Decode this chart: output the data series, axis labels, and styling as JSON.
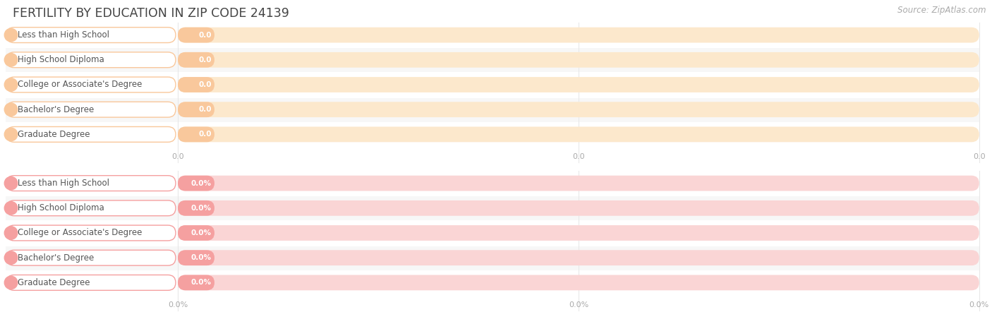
{
  "title": "FERTILITY BY EDUCATION IN ZIP CODE 24139",
  "source_text": "Source: ZipAtlas.com",
  "categories": [
    "Less than High School",
    "High School Diploma",
    "College or Associate's Degree",
    "Bachelor's Degree",
    "Graduate Degree"
  ],
  "values_top": [
    0.0,
    0.0,
    0.0,
    0.0,
    0.0
  ],
  "values_bottom": [
    0.0,
    0.0,
    0.0,
    0.0,
    0.0
  ],
  "labels_top": [
    "0.0",
    "0.0",
    "0.0",
    "0.0",
    "0.0"
  ],
  "labels_bottom": [
    "0.0%",
    "0.0%",
    "0.0%",
    "0.0%",
    "0.0%"
  ],
  "bar_color_top": "#f9c89c",
  "bar_bg_color_top": "#fce8cc",
  "bar_color_bottom": "#f5a0a0",
  "bar_bg_color_bottom": "#fad5d5",
  "pill_bg_color": "#ffffff",
  "pill_border_color_top": "#f9c89c",
  "pill_border_color_bottom": "#f5a0a0",
  "pill_dot_color_top": "#f9c89c",
  "pill_dot_color_bottom": "#f5a0a0",
  "text_color_label": "#666666",
  "text_color_value_top": "#c8855a",
  "text_color_value_bottom": "#c85a5a",
  "title_color": "#444444",
  "axis_tick_color": "#aaaaaa",
  "background_color": "#ffffff",
  "grid_color": "#e8e8e8",
  "row_bg_even": "#f7f7f7",
  "row_bg_odd": "#ffffff"
}
